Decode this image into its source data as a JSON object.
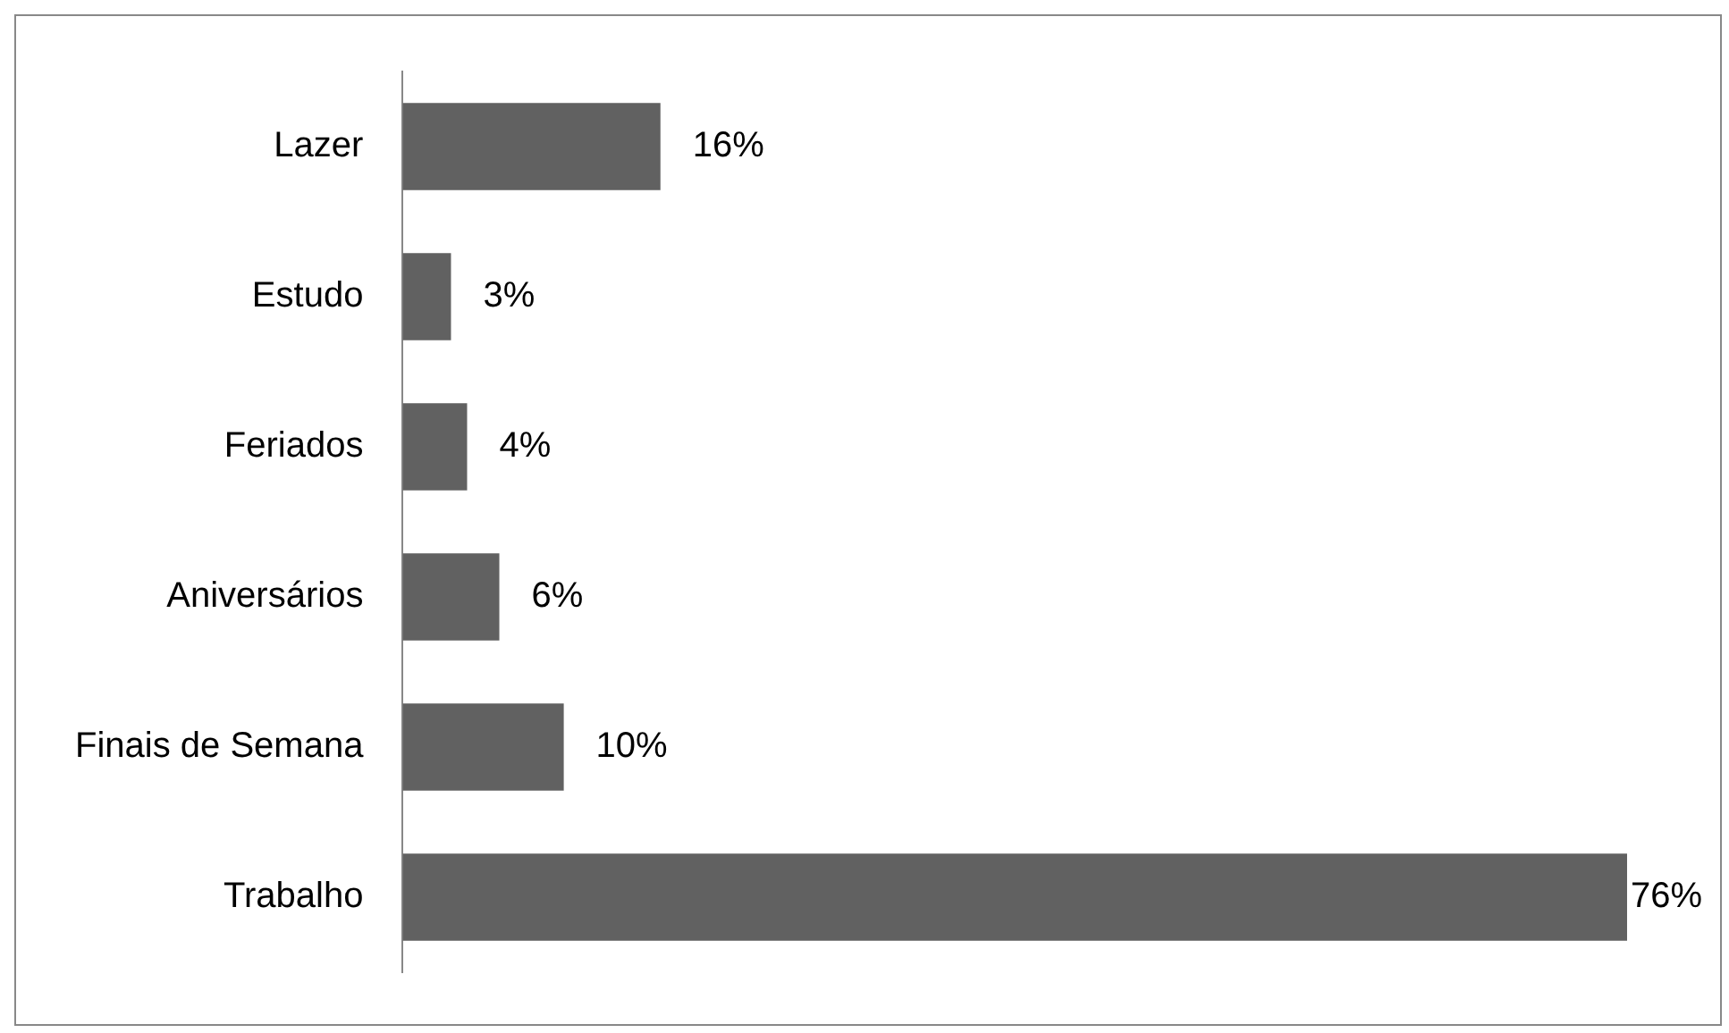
{
  "chart_data": {
    "type": "bar",
    "orientation": "horizontal",
    "categories": [
      "Lazer",
      "Estudo",
      "Feriados",
      "Aniversários",
      "Finais de Semana",
      "Trabalho"
    ],
    "values": [
      16,
      3,
      4,
      6,
      10,
      76
    ],
    "value_labels": [
      "16%",
      "3%",
      "4%",
      "6%",
      "10%",
      "76%"
    ],
    "color": "#616161"
  }
}
